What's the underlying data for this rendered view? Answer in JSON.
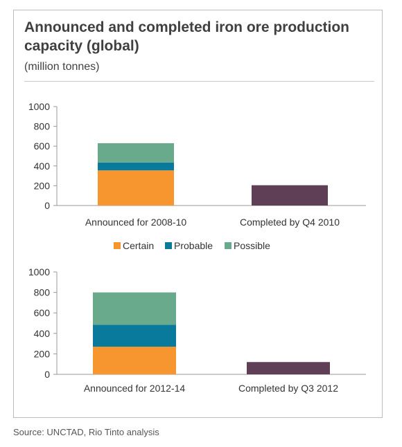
{
  "title": "Announced and completed iron ore production capacity (global)",
  "subtitle": "(million tonnes)",
  "source": "Source: UNCTAD, Rio Tinto analysis",
  "colors": {
    "certain": "#f7962f",
    "probable": "#0a7a9c",
    "possible": "#6aaa8c",
    "completed": "#5f3f55"
  },
  "legend": [
    {
      "key": "certain",
      "label": "Certain"
    },
    {
      "key": "probable",
      "label": "Probable"
    },
    {
      "key": "possible",
      "label": "Possible"
    }
  ],
  "chart_data": [
    {
      "type": "bar",
      "stacked": true,
      "ylim": [
        0,
        1000
      ],
      "yticks": [
        0,
        200,
        400,
        600,
        800,
        1000
      ],
      "tick_labels": [
        "0",
        "200",
        "400",
        "600",
        "800",
        "1000"
      ],
      "categories": [
        "Announced for 2008-10",
        "Completed by Q4 2010"
      ],
      "series": [
        {
          "key": "certain",
          "name": "Certain",
          "values": [
            355,
            0
          ]
        },
        {
          "key": "probable",
          "name": "Probable",
          "values": [
            80,
            0
          ]
        },
        {
          "key": "possible",
          "name": "Possible",
          "values": [
            195,
            0
          ]
        },
        {
          "key": "completed",
          "values": [
            0,
            205
          ]
        }
      ],
      "legend_position": "bottom"
    },
    {
      "type": "bar",
      "stacked": true,
      "ylim": [
        0,
        1000
      ],
      "yticks": [
        0,
        200,
        400,
        600,
        800,
        1000
      ],
      "tick_labels": [
        "0",
        "200",
        "400",
        "600",
        "800",
        "1000"
      ],
      "categories": [
        "Announced for 2012-14",
        "Completed by Q3 2012"
      ],
      "series": [
        {
          "key": "certain",
          "name": "Certain",
          "values": [
            270,
            0
          ]
        },
        {
          "key": "probable",
          "name": "Probable",
          "values": [
            215,
            0
          ]
        },
        {
          "key": "possible",
          "name": "Possible",
          "values": [
            315,
            0
          ]
        },
        {
          "key": "completed",
          "values": [
            0,
            120
          ]
        }
      ]
    }
  ]
}
